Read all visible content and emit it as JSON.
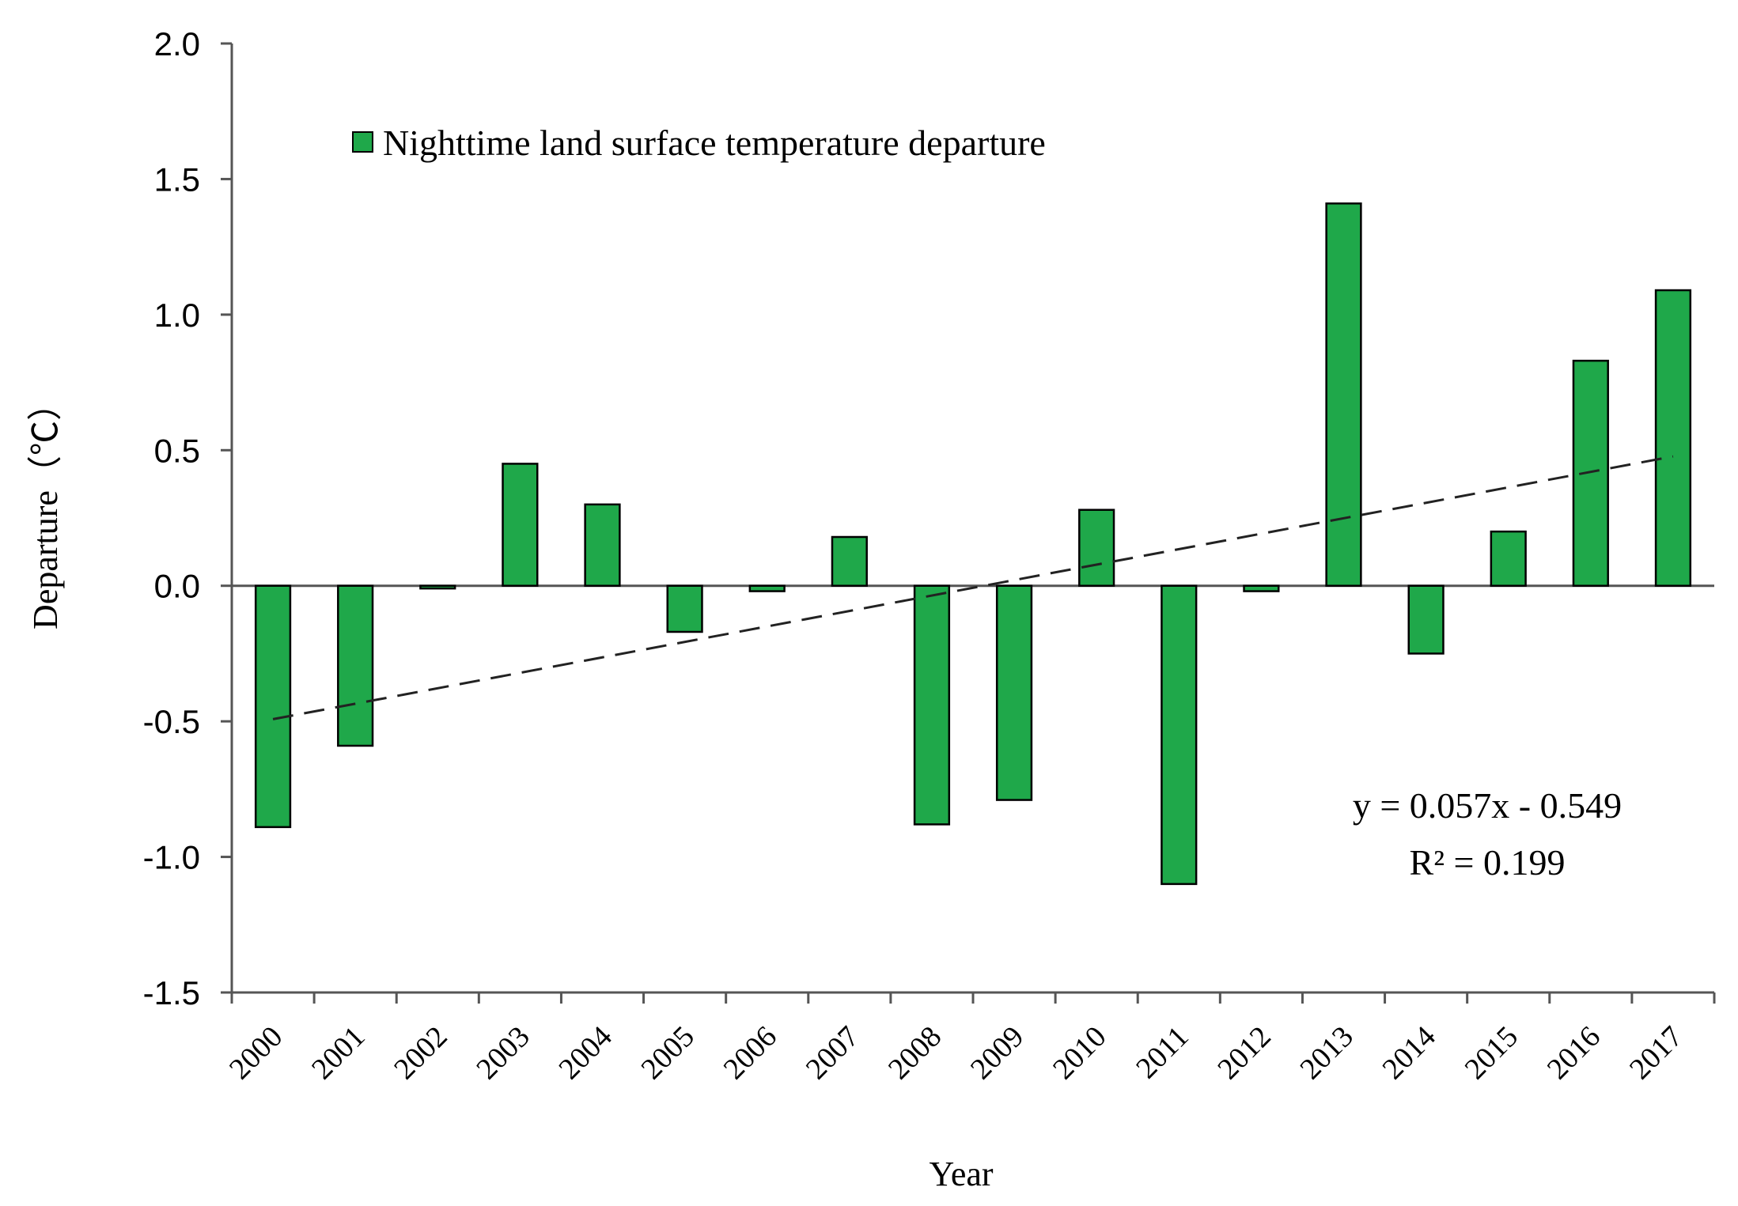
{
  "colors": {
    "bar_fill": "#1fa84a",
    "bar_stroke": "#000000",
    "trend": "#222222",
    "axis": "#555555"
  },
  "chart_data": {
    "type": "bar",
    "title": "",
    "xlabel": "Year",
    "ylabel": "Departure（℃）",
    "ylim": [
      -1.5,
      2.0
    ],
    "ytick_step": 0.5,
    "ytick_labels": [
      "-1.5",
      "-1.0",
      "-0.5",
      "0.0",
      "0.5",
      "1.0",
      "1.5",
      "2.0"
    ],
    "grid": false,
    "legend_position": "top-left",
    "categories": [
      "2000",
      "2001",
      "2002",
      "2003",
      "2004",
      "2005",
      "2006",
      "2007",
      "2008",
      "2009",
      "2010",
      "2011",
      "2012",
      "2013",
      "2014",
      "2015",
      "2016",
      "2017"
    ],
    "series": [
      {
        "name": "Nighttime land surface temperature departure",
        "values": [
          -0.89,
          -0.59,
          -0.01,
          0.45,
          0.3,
          -0.17,
          -0.02,
          0.18,
          -0.88,
          -0.79,
          0.28,
          -1.1,
          -0.02,
          1.41,
          -0.25,
          0.2,
          0.83,
          1.09
        ]
      }
    ],
    "trendline": {
      "style": "dashed",
      "slope": 0.057,
      "intercept": -0.549,
      "equation_label": "y = 0.057x - 0.549",
      "r2_label": "R² = 0.199"
    }
  }
}
